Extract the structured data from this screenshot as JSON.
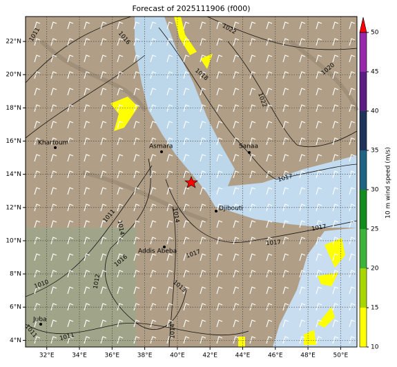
{
  "map": {
    "title": "Forecast of 2025111906 (f000)",
    "xlim": [
      30.7,
      51.0
    ],
    "ylim": [
      3.6,
      23.5
    ],
    "xticks": [
      {
        "value": 32,
        "label": "32°E"
      },
      {
        "value": 34,
        "label": "34°E"
      },
      {
        "value": 36,
        "label": "36°E"
      },
      {
        "value": 38,
        "label": "38°E"
      },
      {
        "value": 40,
        "label": "40°E"
      },
      {
        "value": 42,
        "label": "42°E"
      },
      {
        "value": 44,
        "label": "44°E"
      },
      {
        "value": 46,
        "label": "46°E"
      },
      {
        "value": 48,
        "label": "48°E"
      },
      {
        "value": 50,
        "label": "50°E"
      }
    ],
    "yticks": [
      {
        "value": 4,
        "label": "4°N"
      },
      {
        "value": 6,
        "label": "6°N"
      },
      {
        "value": 8,
        "label": "8°N"
      },
      {
        "value": 10,
        "label": "10°N"
      },
      {
        "value": 12,
        "label": "12°N"
      },
      {
        "value": 14,
        "label": "14°N"
      },
      {
        "value": 16,
        "label": "16°N"
      },
      {
        "value": 18,
        "label": "18°N"
      },
      {
        "value": 20,
        "label": "20°N"
      },
      {
        "value": 22,
        "label": "22°N"
      }
    ],
    "cities": [
      "Khartoum",
      "Asmara",
      "Sanaa",
      "Djibouti",
      "Addis Abeba",
      "Juba"
    ],
    "contour_labels": [
      "1011",
      "1016",
      "1022",
      "1018",
      "1020",
      "1022",
      "1017",
      "1017",
      "1017",
      "1011",
      "1014",
      "1016",
      "1017",
      "1010",
      "1012",
      "1013",
      "1014",
      "1011",
      "1011",
      "1014"
    ],
    "colorbar": {
      "label": "10 m wind speed (m/s)",
      "lim": [
        10,
        50
      ],
      "ticks": [
        10,
        15,
        20,
        25,
        30,
        35,
        40,
        45,
        50
      ],
      "colors": [
        "#ffff00",
        "#a8d600",
        "#3cb43c",
        "#128c1e",
        "#1e6482",
        "#1e325a",
        "#5a1e82",
        "#9628aa"
      ],
      "extend_color": "#ff0000"
    }
  }
}
